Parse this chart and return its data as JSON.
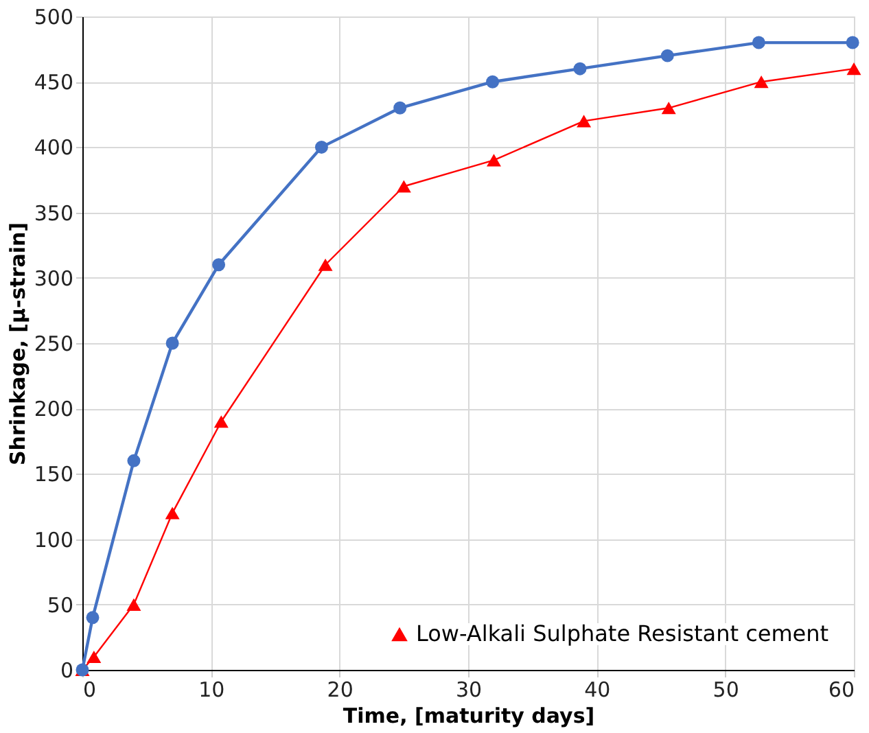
{
  "chart_data": {
    "type": "line",
    "xlabel": "Time, [maturity days]",
    "ylabel": "Shrinkage, [µ-strain]",
    "xlim": [
      0,
      60
    ],
    "xticks": [
      0,
      10,
      20,
      30,
      40,
      50,
      60
    ],
    "ylim": [
      0,
      500
    ],
    "yticks": [
      0,
      50,
      100,
      150,
      200,
      250,
      300,
      350,
      400,
      450,
      500
    ],
    "grid": true,
    "legend": "bottom right",
    "series": [
      {
        "name": "Low-Alkali Sulphate Resistant cement",
        "color": "#ff0000",
        "marker": "triangle",
        "x": [
          0,
          0.9,
          4,
          7,
          10.8,
          18.9,
          25,
          32,
          39,
          45.6,
          52.8,
          60
        ],
        "values": [
          0,
          10,
          50,
          120,
          190,
          310,
          370,
          390,
          420,
          430,
          450,
          460
        ]
      },
      {
        "color": "#4472c4",
        "marker": "circle",
        "x": [
          0,
          0.8,
          4,
          7,
          10.6,
          18.6,
          24.7,
          31.9,
          38.7,
          45.5,
          52.6,
          59.9
        ],
        "values": [
          0,
          40,
          160,
          250,
          310,
          400,
          430,
          450,
          460,
          470,
          480,
          480
        ]
      }
    ]
  }
}
